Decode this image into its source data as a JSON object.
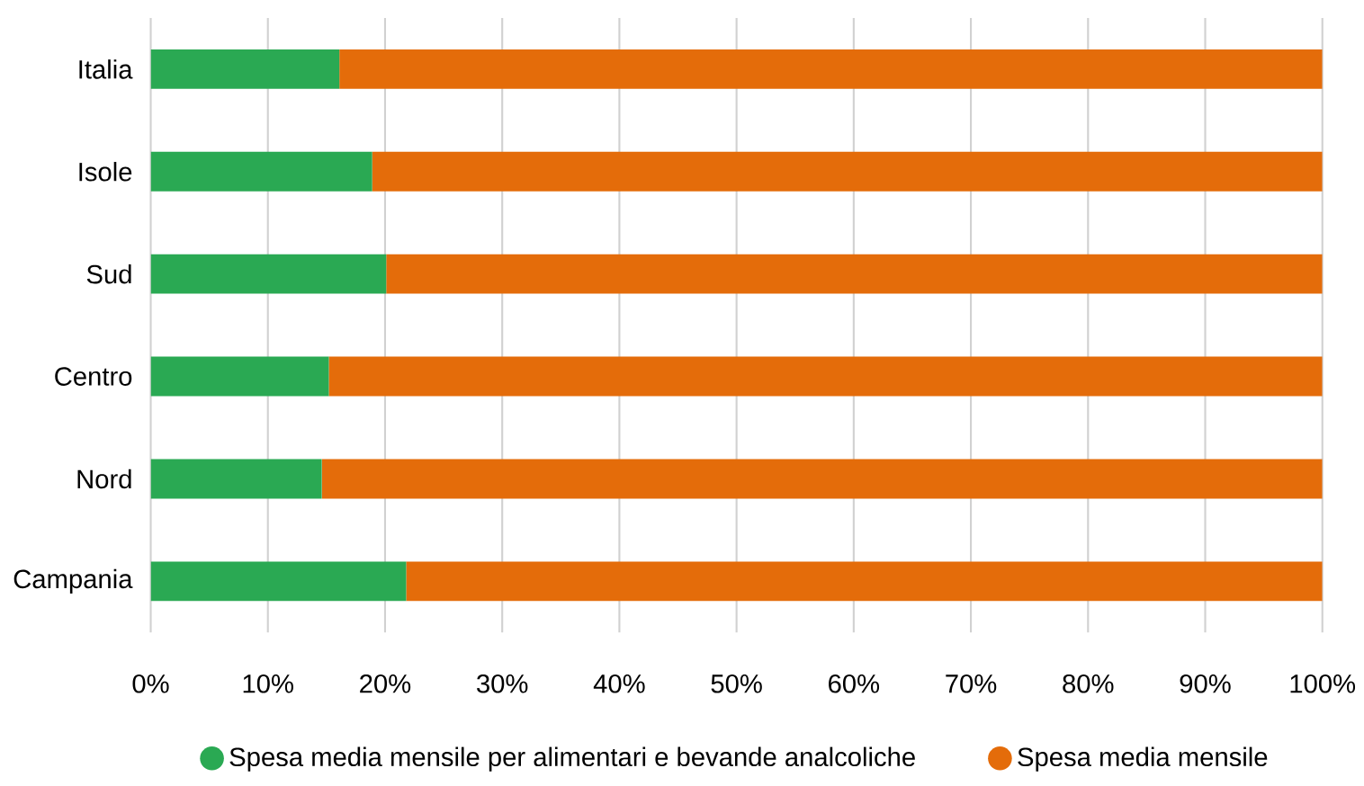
{
  "chart_data": {
    "type": "bar",
    "orientation": "horizontal",
    "stacked": true,
    "categories": [
      "Italia",
      "Isole",
      "Sud",
      "Centro",
      "Nord",
      "Campania"
    ],
    "series": [
      {
        "name": "Spesa media mensile per alimentari e bevande analcoliche",
        "color": "#2aa953",
        "values": [
          16.1,
          18.9,
          20.1,
          15.2,
          14.6,
          21.8
        ]
      },
      {
        "name": "Spesa media mensile",
        "color": "#e46c0a",
        "values": [
          83.9,
          81.1,
          79.9,
          84.8,
          85.4,
          78.2
        ]
      }
    ],
    "xlim": [
      0,
      100
    ],
    "xticks": [
      {
        "value": 0,
        "label": "0%"
      },
      {
        "value": 10,
        "label": "10%"
      },
      {
        "value": 20,
        "label": "20%"
      },
      {
        "value": 30,
        "label": "30%"
      },
      {
        "value": 40,
        "label": "40%"
      },
      {
        "value": 50,
        "label": "50%"
      },
      {
        "value": 60,
        "label": "60%"
      },
      {
        "value": 70,
        "label": "70%"
      },
      {
        "value": 80,
        "label": "80%"
      },
      {
        "value": 90,
        "label": "90%"
      },
      {
        "value": 100,
        "label": "100%"
      }
    ],
    "grid": "x",
    "legend": "bottom"
  }
}
